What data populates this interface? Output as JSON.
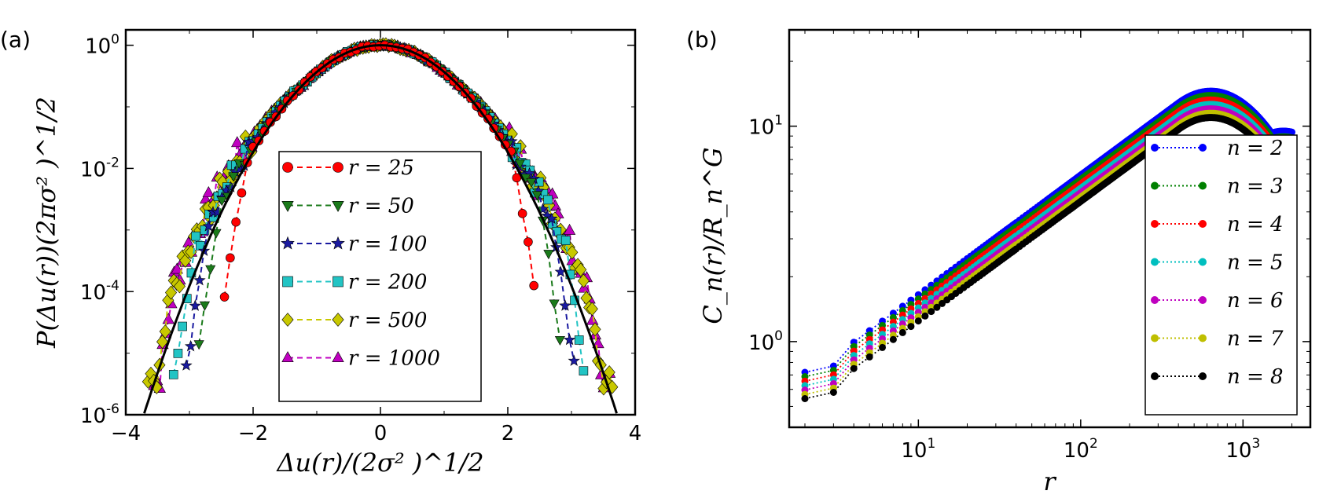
{
  "chart_data": [
    {
      "panel_label": "(a)",
      "type": "scatter",
      "yscale": "log",
      "xlabel": "Δu(r)/(2σ² )^1/2",
      "ylabel": "P(Δu(r))(2πσ² )^1/2",
      "xlim": [
        -4,
        4
      ],
      "ylim_exp": [
        -6,
        0.25
      ],
      "xticks": [
        "−4",
        "−2",
        "0",
        "2",
        "4"
      ],
      "yticks": [
        {
          "base": "10",
          "exp": "0",
          "value": 0
        },
        {
          "base": "10",
          "exp": "-2",
          "value": -2
        },
        {
          "base": "10",
          "exp": "-4",
          "value": -4
        },
        {
          "base": "10",
          "exp": "-6",
          "value": -6
        }
      ],
      "legend_position": "center-right",
      "gaussian_reference": {
        "name": "Gaussian",
        "color": "#000000"
      },
      "series": [
        {
          "name": "r=25",
          "label": "r = 25",
          "color": "#ff0000",
          "marker": "circle",
          "xmax": 2.45
        },
        {
          "name": "r=50",
          "label": "r = 50",
          "color": "#1a7a1a",
          "marker": "triangle-down",
          "xmax": 2.85
        },
        {
          "name": "r=100",
          "label": "r = 100",
          "color": "#1a1aa0",
          "marker": "star",
          "xmax": 3.05
        },
        {
          "name": "r=200",
          "label": "r = 200",
          "color": "#22c4c4",
          "marker": "square",
          "xmax": 3.25
        },
        {
          "name": "r=500",
          "label": "r = 500",
          "color": "#c8c800",
          "marker": "diamond",
          "xmax": 3.65
        },
        {
          "name": "r=1000",
          "label": "r = 1000",
          "color": "#c000c0",
          "marker": "triangle-up",
          "xmax": 3.6
        }
      ]
    },
    {
      "panel_label": "(b)",
      "type": "line",
      "xscale": "log",
      "yscale": "log",
      "xlabel": "r",
      "ylabel": "C_n(r)/R_n^G",
      "xlim": [
        1.6,
        2600
      ],
      "ylim": [
        0.4,
        28
      ],
      "xticks": [
        {
          "base": "10",
          "exp": "1",
          "value": 10
        },
        {
          "base": "10",
          "exp": "2",
          "value": 100
        },
        {
          "base": "10",
          "exp": "3",
          "value": 1000
        }
      ],
      "yticks": [
        {
          "base": "10",
          "exp": "0",
          "value": 1
        },
        {
          "base": "10",
          "exp": "1",
          "value": 10
        }
      ],
      "legend_position": "lower-right",
      "series": [
        {
          "name": "n=2",
          "label": "n = 2",
          "color": "#0000ff",
          "scale": 1.0
        },
        {
          "name": "n=3",
          "label": "n = 3",
          "color": "#008000",
          "scale": 0.955
        },
        {
          "name": "n=4",
          "label": "n = 4",
          "color": "#ff0000",
          "scale": 0.91
        },
        {
          "name": "n=5",
          "label": "n = 5",
          "color": "#00bfbf",
          "scale": 0.868
        },
        {
          "name": "n=6",
          "label": "n = 6",
          "color": "#bf00bf",
          "scale": 0.828
        },
        {
          "name": "n=7",
          "label": "n = 7",
          "color": "#bfbf00",
          "scale": 0.79
        },
        {
          "name": "n=8",
          "label": "n = 8",
          "color": "#000000",
          "scale": 0.755
        }
      ]
    }
  ]
}
